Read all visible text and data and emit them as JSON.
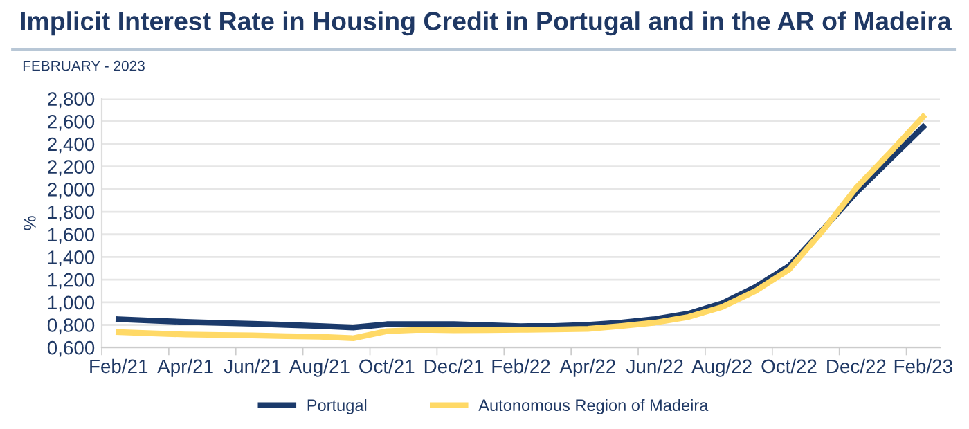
{
  "chart_data": {
    "type": "line",
    "title": "Implicit Interest Rate in Housing Credit in Portugal and in the AR of Madeira",
    "subtitle": "FEBRUARY - 2023",
    "ylabel": "%",
    "categories": [
      "Feb/21",
      null,
      "Apr/21",
      null,
      "Jun/21",
      null,
      "Aug/21",
      null,
      "Oct/21",
      null,
      "Dec/21",
      null,
      "Feb/22",
      null,
      "Apr/22",
      null,
      "Jun/22",
      null,
      "Aug/22",
      null,
      "Oct/22",
      null,
      "Dec/22",
      null,
      "Feb/23"
    ],
    "series": [
      {
        "name": "Portugal",
        "color": "#1b3a6b",
        "values": [
          0.85,
          0.838,
          0.826,
          0.818,
          0.81,
          0.8,
          0.79,
          0.777,
          0.806,
          0.806,
          0.806,
          0.797,
          0.789,
          0.79,
          0.8,
          0.82,
          0.851,
          0.9,
          0.99,
          1.135,
          1.32,
          1.64,
          1.97,
          2.26,
          2.55
        ]
      },
      {
        "name": "Autonomous Region of Madeira",
        "color": "#ffd966",
        "values": [
          0.736,
          0.725,
          0.715,
          0.711,
          0.707,
          0.7,
          0.695,
          0.682,
          0.744,
          0.756,
          0.752,
          0.754,
          0.756,
          0.76,
          0.765,
          0.79,
          0.82,
          0.87,
          0.958,
          1.1,
          1.29,
          1.63,
          2.01,
          2.32,
          2.64
        ]
      }
    ],
    "ylim": [
      0.6,
      2.8
    ],
    "yticks": [
      {
        "value": 0.6,
        "label": "0,600"
      },
      {
        "value": 0.8,
        "label": "0,800"
      },
      {
        "value": 1.0,
        "label": "1,000"
      },
      {
        "value": 1.2,
        "label": "1,200"
      },
      {
        "value": 1.4,
        "label": "1,400"
      },
      {
        "value": 1.6,
        "label": "1,600"
      },
      {
        "value": 1.8,
        "label": "1,800"
      },
      {
        "value": 2.0,
        "label": "2,000"
      },
      {
        "value": 2.2,
        "label": "2,200"
      },
      {
        "value": 2.4,
        "label": "2,400"
      },
      {
        "value": 2.6,
        "label": "2,600"
      },
      {
        "value": 2.8,
        "label": "2,800"
      }
    ],
    "grid": "y",
    "legend": "bottom",
    "marker": "none",
    "line_style": "solid"
  }
}
